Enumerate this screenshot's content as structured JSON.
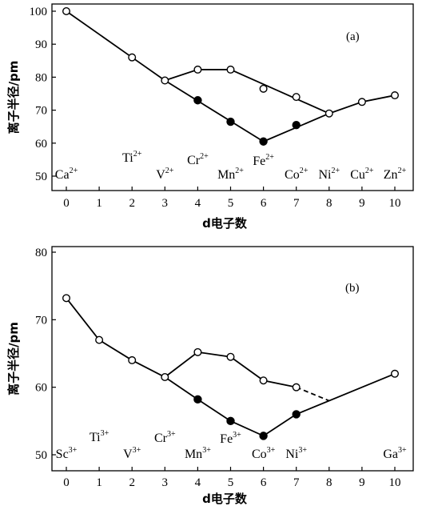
{
  "chart_data": [
    {
      "type": "line",
      "panel_label": "(a)",
      "xlabel": "d电子数",
      "ylabel": "离子半径/pm",
      "xlim": [
        -0.5,
        10.5
      ],
      "ylim": [
        45,
        100
      ],
      "xticks": [
        0,
        1,
        2,
        3,
        4,
        5,
        6,
        7,
        8,
        9,
        10
      ],
      "yticks": [
        50,
        60,
        70,
        80,
        90,
        100
      ],
      "ions": [
        {
          "base": "Ca",
          "charge": "2+",
          "d": 0
        },
        {
          "base": "Ti",
          "charge": "2+",
          "d": 2
        },
        {
          "base": "V",
          "charge": "2+",
          "d": 3
        },
        {
          "base": "Cr",
          "charge": "2+",
          "d": 4
        },
        {
          "base": "Mn",
          "charge": "2+",
          "d": 5
        },
        {
          "base": "Fe",
          "charge": "2+",
          "d": 6
        },
        {
          "base": "Co",
          "charge": "2+",
          "d": 7
        },
        {
          "base": "Ni",
          "charge": "2+",
          "d": 8
        },
        {
          "base": "Cu",
          "charge": "2+",
          "d": 9
        },
        {
          "base": "Zn",
          "charge": "2+",
          "d": 10
        }
      ],
      "series": [
        {
          "marker": "open",
          "style": "solid",
          "x": [
            0,
            2,
            3,
            4,
            5
          ],
          "y": [
            100,
            86,
            79,
            82.3,
            82.3
          ]
        },
        {
          "marker": "open",
          "style": "none",
          "x": [
            6,
            7
          ],
          "y": [
            76.5,
            74
          ]
        },
        {
          "marker": "open",
          "style": "solid",
          "x": [
            8,
            9,
            10
          ],
          "y": [
            69,
            72.5,
            74.5
          ]
        },
        {
          "marker": "filled",
          "style": "none",
          "x": [
            4,
            5,
            7
          ],
          "y": [
            73,
            66.5,
            65.5
          ]
        },
        {
          "marker": "filled",
          "style": "none",
          "x": [
            6
          ],
          "y": [
            60.5
          ]
        }
      ],
      "segments": [
        {
          "style": "solid",
          "from": [
            5,
            82.3
          ],
          "to": [
            8,
            69
          ]
        },
        {
          "style": "solid",
          "from": [
            3,
            79
          ],
          "to": [
            6,
            60.5
          ]
        },
        {
          "style": "solid",
          "from": [
            6,
            60.5
          ],
          "to": [
            8,
            69
          ]
        }
      ]
    },
    {
      "type": "line",
      "panel_label": "(b)",
      "xlabel": "d电子数",
      "ylabel": "离子半径/pm",
      "xlim": [
        -0.5,
        10.5
      ],
      "ylim": [
        48,
        80
      ],
      "xticks": [
        0,
        1,
        2,
        3,
        4,
        5,
        6,
        7,
        8,
        9,
        10
      ],
      "yticks": [
        50,
        60,
        70,
        80
      ],
      "ions": [
        {
          "base": "Sc",
          "charge": "3+",
          "d": 0
        },
        {
          "base": "Ti",
          "charge": "3+",
          "d": 1
        },
        {
          "base": "V",
          "charge": "3+",
          "d": 2
        },
        {
          "base": "Cr",
          "charge": "3+",
          "d": 3
        },
        {
          "base": "Mn",
          "charge": "3+",
          "d": 4
        },
        {
          "base": "Fe",
          "charge": "3+",
          "d": 5
        },
        {
          "base": "Co",
          "charge": "3+",
          "d": 6
        },
        {
          "base": "Ni",
          "charge": "3+",
          "d": 7
        },
        {
          "base": "Ga",
          "charge": "3+",
          "d": 10
        }
      ],
      "series": [
        {
          "marker": "open",
          "style": "solid",
          "x": [
            0,
            1,
            2,
            3,
            4,
            5,
            6,
            7
          ],
          "y": [
            73.2,
            67,
            64,
            61.5,
            65.2,
            64.5,
            61,
            60
          ]
        },
        {
          "marker": "filled",
          "style": "solid",
          "x": [
            4,
            5,
            6,
            7
          ],
          "y": [
            58.2,
            55,
            52.8,
            56
          ]
        },
        {
          "marker": "open",
          "style": "none",
          "x": [
            10
          ],
          "y": [
            62
          ]
        }
      ],
      "segments": [
        {
          "style": "solid",
          "from": [
            3,
            61.5
          ],
          "to": [
            4,
            58.2
          ]
        },
        {
          "style": "dashed",
          "from": [
            7,
            60
          ],
          "to": [
            8,
            58
          ]
        },
        {
          "style": "solid",
          "from": [
            7,
            56
          ],
          "to": [
            10,
            62
          ]
        }
      ]
    }
  ]
}
